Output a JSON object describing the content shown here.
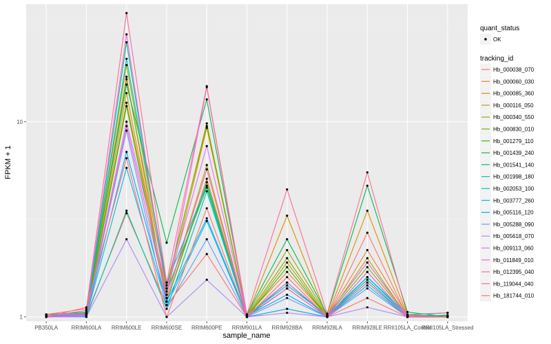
{
  "chart_data": {
    "type": "line",
    "xlabel": "sample_name",
    "ylabel": "FPKM + 1",
    "y_scale": "log10",
    "ylim": [
      0.95,
      40
    ],
    "y_ticks": [
      1,
      10
    ],
    "grid": true,
    "legend_placement": "right",
    "categories": [
      "PB350LA",
      "RRIM600LA",
      "RRIM600LE",
      "RRIM600SE",
      "RRIM600PE",
      "RRIM901LA",
      "RRIM928BA",
      "RRIM928LA",
      "RRIM928LE",
      "RRII105LA_Control",
      "RRII105LA_Stressed"
    ],
    "point_color": "#000000",
    "quant_status": {
      "title": "quant_status",
      "items": [
        "OK"
      ]
    },
    "legend_title": "tracking_id",
    "series": [
      {
        "name": "Hb_000038_070",
        "color": "#F8766D",
        "values": [
          1.0,
          1.02,
          3.4,
          1.15,
          2.1,
          1.0,
          1.1,
          1.0,
          1.25,
          1.0,
          1.0
        ]
      },
      {
        "name": "Hb_000060_030",
        "color": "#EA8331",
        "values": [
          1.02,
          1.05,
          17.0,
          1.2,
          5.1,
          1.02,
          1.7,
          1.01,
          2.2,
          1.02,
          1.01
        ]
      },
      {
        "name": "Hb_000085_360",
        "color": "#D89000",
        "values": [
          1.01,
          1.03,
          12.5,
          1.3,
          9.3,
          1.01,
          3.3,
          1.0,
          3.5,
          1.01,
          1.0
        ]
      },
      {
        "name": "Hb_000116_050",
        "color": "#C09B00",
        "values": [
          1.0,
          1.02,
          14.0,
          1.25,
          6.0,
          1.0,
          1.9,
          1.0,
          2.0,
          1.0,
          1.0
        ]
      },
      {
        "name": "Hb_000340_550",
        "color": "#A3A500",
        "values": [
          1.01,
          1.04,
          19.5,
          1.45,
          9.5,
          1.02,
          2.2,
          1.02,
          1.9,
          1.02,
          1.01
        ]
      },
      {
        "name": "Hb_000830_010",
        "color": "#7CAE00",
        "values": [
          1.02,
          1.03,
          16.5,
          1.4,
          9.8,
          1.01,
          2.0,
          1.01,
          1.8,
          1.01,
          1.02
        ]
      },
      {
        "name": "Hb_001279_110",
        "color": "#39B600",
        "values": [
          1.01,
          1.02,
          12.0,
          1.2,
          4.9,
          1.0,
          1.8,
          1.0,
          1.7,
          1.0,
          1.0
        ]
      },
      {
        "name": "Hb_001439_240",
        "color": "#00BB4E",
        "values": [
          1.03,
          1.06,
          15.5,
          2.4,
          13.0,
          1.03,
          2.5,
          1.03,
          4.7,
          1.06,
          1.0
        ]
      },
      {
        "name": "Hb_001541_140",
        "color": "#00BF7D",
        "values": [
          1.0,
          1.03,
          25.5,
          1.35,
          4.6,
          1.0,
          1.5,
          1.0,
          1.55,
          1.0,
          1.0
        ]
      },
      {
        "name": "Hb_001998_180",
        "color": "#00C1A3",
        "values": [
          1.01,
          1.0,
          3.5,
          1.1,
          4.4,
          1.01,
          1.4,
          1.0,
          1.5,
          1.01,
          1.02
        ]
      },
      {
        "name": "Hb_002053_100",
        "color": "#00BFC4",
        "values": [
          1.02,
          1.04,
          21.0,
          1.5,
          4.7,
          1.02,
          1.45,
          1.02,
          1.6,
          1.03,
          1.05
        ]
      },
      {
        "name": "Hb_003777_260",
        "color": "#00B8E7",
        "values": [
          1.0,
          1.01,
          5.8,
          1.15,
          3.1,
          1.0,
          1.1,
          1.0,
          1.45,
          1.0,
          1.0
        ]
      },
      {
        "name": "Hb_005116_120",
        "color": "#00A9FF",
        "values": [
          1.01,
          1.02,
          7.0,
          1.2,
          3.2,
          1.01,
          1.3,
          1.0,
          1.6,
          1.01,
          1.0
        ]
      },
      {
        "name": "Hb_005288_090",
        "color": "#619CFF",
        "values": [
          1.0,
          1.01,
          9.0,
          1.1,
          2.5,
          1.0,
          1.25,
          1.0,
          1.4,
          1.0,
          1.0
        ]
      },
      {
        "name": "Hb_005618_070",
        "color": "#AE87FF",
        "values": [
          1.0,
          1.0,
          2.5,
          1.0,
          1.55,
          1.0,
          1.05,
          1.0,
          1.12,
          1.0,
          1.0
        ]
      },
      {
        "name": "Hb_009113_060",
        "color": "#DB72FB",
        "values": [
          1.02,
          1.03,
          10.0,
          1.4,
          7.5,
          1.02,
          1.5,
          1.02,
          1.9,
          1.01,
          1.0
        ]
      },
      {
        "name": "Hb_011849_010",
        "color": "#F564E3",
        "values": [
          1.01,
          1.08,
          28.0,
          1.3,
          15.0,
          1.0,
          1.4,
          1.0,
          1.7,
          1.0,
          1.0
        ]
      },
      {
        "name": "Hb_012395_040",
        "color": "#FF61C3",
        "values": [
          1.0,
          1.02,
          9.5,
          1.25,
          5.7,
          1.0,
          1.4,
          1.0,
          1.5,
          1.0,
          1.0
        ]
      },
      {
        "name": "Hb_119044_040",
        "color": "#FF6C91",
        "values": [
          1.03,
          1.1,
          36.0,
          1.5,
          15.2,
          1.03,
          4.5,
          1.04,
          5.5,
          1.02,
          1.05
        ]
      },
      {
        "name": "Hb_181744_010",
        "color": "#F8766D",
        "values": [
          1.0,
          1.12,
          6.5,
          1.0,
          3.6,
          1.0,
          1.6,
          1.0,
          2.7,
          1.0,
          1.0
        ]
      }
    ]
  }
}
